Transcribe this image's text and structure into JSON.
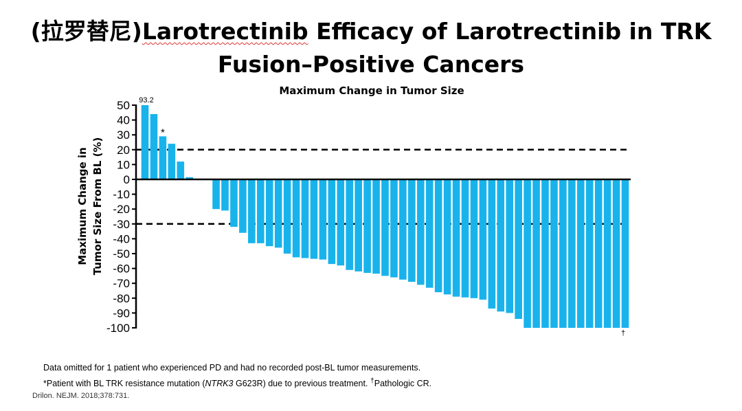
{
  "slide": {
    "title_prefix": "(拉罗替尼)",
    "title_underlined": "Larotrectinib",
    "title_rest": " Efficacy of Larotrectinib in TRK",
    "title_line2": "Fusion–Positive Cancers"
  },
  "footnotes": {
    "line1": "Data omitted for 1 patient who experienced PD and had no recorded post-BL tumor measurements.",
    "line2_prefix": "*Patient with BL TRK resistance mutation (",
    "line2_italic": "NTRK3",
    "line2_mid": " G623R) due to previous treatment. ",
    "line2_sup": "†",
    "line2_end": "Pathologic CR."
  },
  "citation": "Drilon. NEJM. 2018;378:731.",
  "chart_data": {
    "type": "bar",
    "title": "Maximum Change in Tumor Size",
    "ylabel_line1": "Maximum Change in",
    "ylabel_line2": "Tumor Size From BL (%)",
    "ylim": [
      -100,
      50
    ],
    "yticks": [
      50,
      40,
      30,
      20,
      10,
      0,
      -10,
      -20,
      -30,
      -40,
      -50,
      -60,
      -70,
      -80,
      -90,
      -100
    ],
    "values": [
      50,
      44,
      29,
      24,
      12,
      1.5,
      0,
      0,
      -20,
      -21,
      -32,
      -36,
      -43,
      -43,
      -45,
      -46,
      -50,
      -52.5,
      -53,
      -53.5,
      -54,
      -57,
      -58,
      -61,
      -62,
      -63,
      -63.5,
      -65,
      -66,
      -67.5,
      -69,
      -71,
      -73,
      -76,
      -77.5,
      -79,
      -79.5,
      -80,
      -81,
      -87,
      -89,
      -90,
      -94,
      -100,
      -100,
      -100,
      -100,
      -100,
      -100,
      -100,
      -100,
      -100,
      -100,
      -100,
      -100
    ],
    "reference_lines": [
      20,
      -30
    ],
    "bar_color": "#19b3ec",
    "annotations": [
      {
        "index": 0,
        "text": "93.2",
        "kind": "top"
      },
      {
        "index": 2,
        "text": "*",
        "kind": "star"
      },
      {
        "index": 54,
        "text": "†",
        "kind": "bottom"
      }
    ]
  }
}
